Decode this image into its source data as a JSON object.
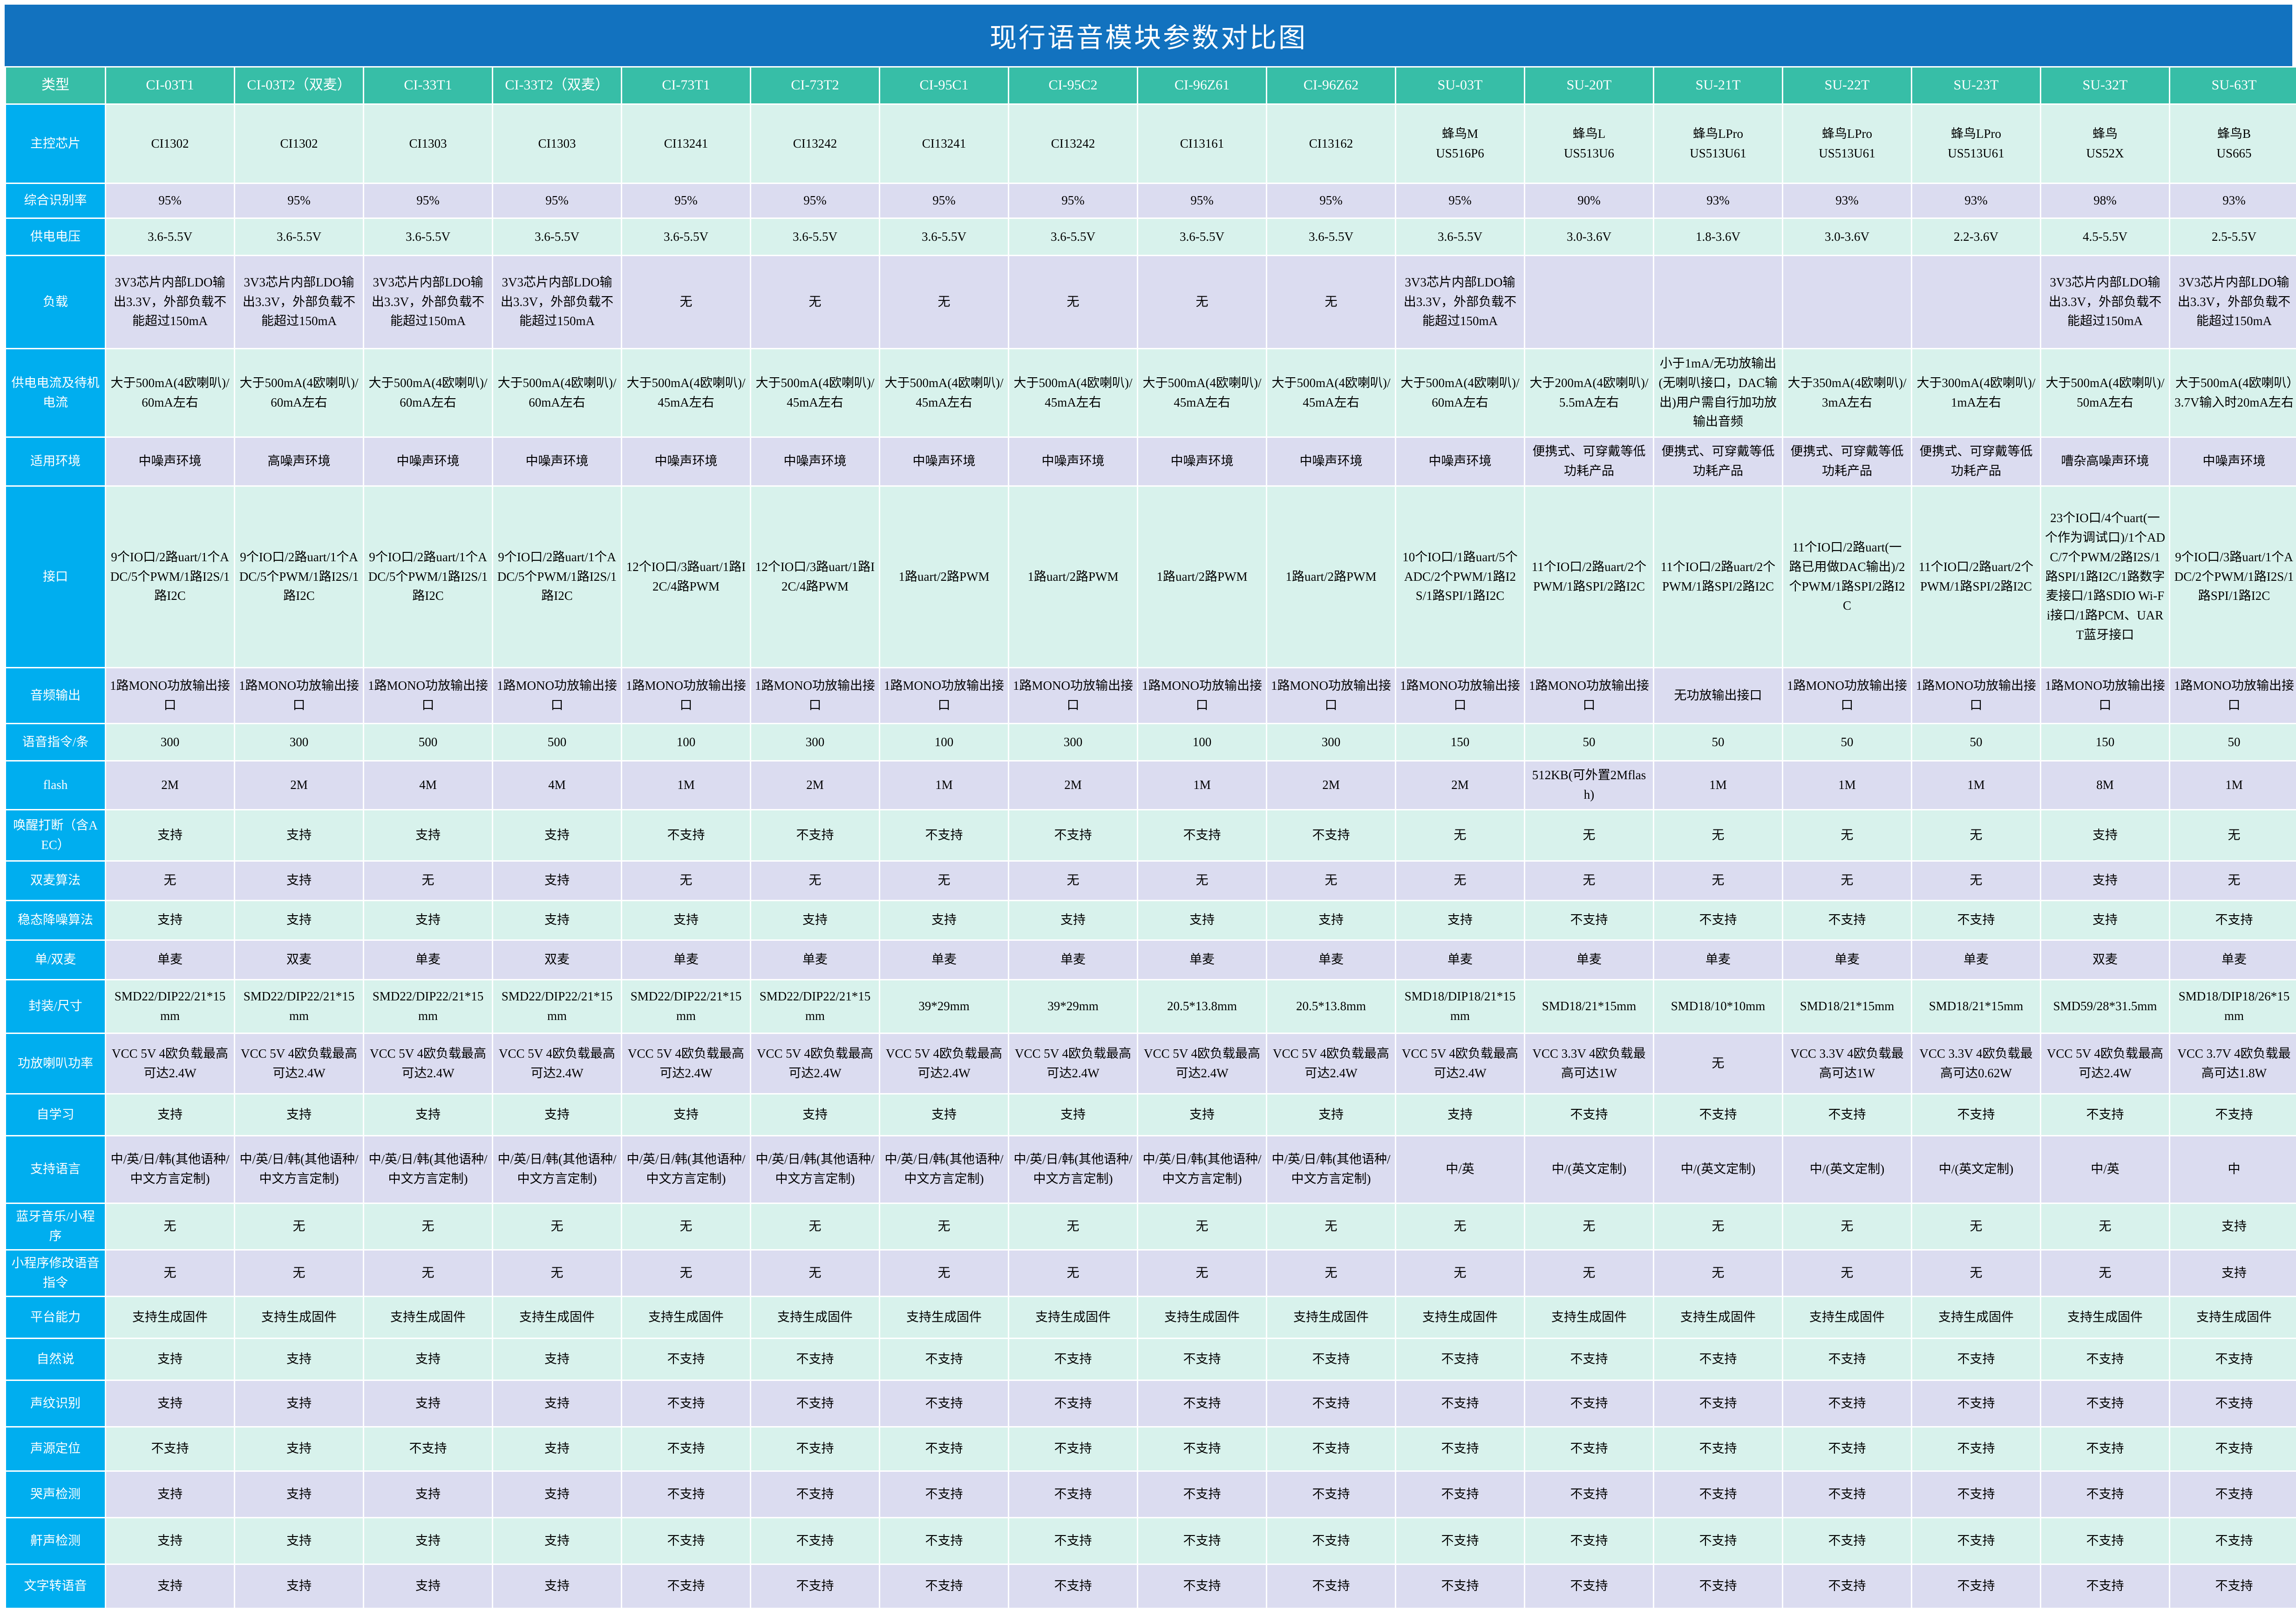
{
  "title": "现行语音模块参数对比图",
  "colors": {
    "title_bar": "#1272BF",
    "label_column": "#00AEEF",
    "header_row": "#37BEA7",
    "shade_mint": "#D8F2EC",
    "shade_lavender": "#DBDCF0",
    "grid": "#FFFFFF"
  },
  "table": {
    "corner_label": "类型",
    "columns": [
      "CI-03T1",
      "CI-03T2（双麦）",
      "CI-33T1",
      "CI-33T2（双麦）",
      "CI-73T1",
      "CI-73T2",
      "CI-95C1",
      "CI-95C2",
      "CI-96Z61",
      "CI-96Z62",
      "SU-03T",
      "SU-20T",
      "SU-21T",
      "SU-22T",
      "SU-23T",
      "SU-32T",
      "SU-63T"
    ],
    "rows": [
      {
        "label": "主控芯片",
        "values": [
          "CI1302",
          "CI1302",
          "CI1303",
          "CI1303",
          "CI13241",
          "CI13242",
          "CI13241",
          "CI13242",
          "CI13161",
          "CI13162",
          "蜂鸟M\nUS516P6",
          "蜂鸟L\nUS513U6",
          "蜂鸟LPro\nUS513U61",
          "蜂鸟LPro\nUS513U61",
          "蜂鸟LPro\nUS513U61",
          "蜂鸟\nUS52X",
          "蜂鸟B\nUS665"
        ]
      },
      {
        "label": "综合识别率",
        "values": [
          "95%",
          "95%",
          "95%",
          "95%",
          "95%",
          "95%",
          "95%",
          "95%",
          "95%",
          "95%",
          "95%",
          "90%",
          "93%",
          "93%",
          "93%",
          "98%",
          "93%"
        ]
      },
      {
        "label": "供电电压",
        "values": [
          "3.6-5.5V",
          "3.6-5.5V",
          "3.6-5.5V",
          "3.6-5.5V",
          "3.6-5.5V",
          "3.6-5.5V",
          "3.6-5.5V",
          "3.6-5.5V",
          "3.6-5.5V",
          "3.6-5.5V",
          "3.6-5.5V",
          "3.0-3.6V",
          "1.8-3.6V",
          "3.0-3.6V",
          "2.2-3.6V",
          "4.5-5.5V",
          "2.5-5.5V"
        ]
      },
      {
        "label": "负载",
        "values": [
          "3V3芯片内部LDO输出3.3V，外部负载不能超过150mA",
          "3V3芯片内部LDO输出3.3V，外部负载不能超过150mA",
          "3V3芯片内部LDO输出3.3V，外部负载不能超过150mA",
          "3V3芯片内部LDO输出3.3V，外部负载不能超过150mA",
          "无",
          "无",
          "无",
          "无",
          "无",
          "无",
          "3V3芯片内部LDO输出3.3V，外部负载不能超过150mA",
          "",
          "",
          "",
          "",
          "3V3芯片内部LDO输出3.3V，外部负载不能超过150mA",
          "3V3芯片内部LDO输出3.3V，外部负载不能超过150mA"
        ]
      },
      {
        "label": "供电电流及待机电流",
        "values": [
          "大于500mA(4欧喇叭)/60mA左右",
          "大于500mA(4欧喇叭)/60mA左右",
          "大于500mA(4欧喇叭)/60mA左右",
          "大于500mA(4欧喇叭)/60mA左右",
          "大于500mA(4欧喇叭)/45mA左右",
          "大于500mA(4欧喇叭)/45mA左右",
          "大于500mA(4欧喇叭)/45mA左右",
          "大于500mA(4欧喇叭)/45mA左右",
          "大于500mA(4欧喇叭)/45mA左右",
          "大于500mA(4欧喇叭)/45mA左右",
          "大于500mA(4欧喇叭)/60mA左右",
          "大于200mA(4欧喇叭)/5.5mA左右",
          "小于1mA/无功放输出(无喇叭接口，DAC输出)用户需自行加功放输出音频",
          "大于350mA(4欧喇叭)/3mA左右",
          "大于300mA(4欧喇叭)/1mA左右",
          "大于500mA(4欧喇叭)/50mA左右",
          "大于500mA(4欧喇叭）3.7V输入时20mA左右"
        ]
      },
      {
        "label": "适用环境",
        "values": [
          "中噪声环境",
          "高噪声环境",
          "中噪声环境",
          "中噪声环境",
          "中噪声环境",
          "中噪声环境",
          "中噪声环境",
          "中噪声环境",
          "中噪声环境",
          "中噪声环境",
          "中噪声环境",
          "便携式、可穿戴等低功耗产品",
          "便携式、可穿戴等低功耗产品",
          "便携式、可穿戴等低功耗产品",
          "便携式、可穿戴等低功耗产品",
          "嘈杂高噪声环境",
          "中噪声环境"
        ]
      },
      {
        "label": "接口",
        "values": [
          "9个IO口/2路uart/1个ADC/5个PWM/1路I2S/1路I2C",
          "9个IO口/2路uart/1个ADC/5个PWM/1路I2S/1路I2C",
          "9个IO口/2路uart/1个ADC/5个PWM/1路I2S/1路I2C",
          "9个IO口/2路uart/1个ADC/5个PWM/1路I2S/1路I2C",
          "12个IO口/3路uart/1路I2C/4路PWM",
          "12个IO口/3路uart/1路I2C/4路PWM",
          "1路uart/2路PWM",
          "1路uart/2路PWM",
          "1路uart/2路PWM",
          "1路uart/2路PWM",
          "10个IO口/1路uart/5个ADC/2个PWM/1路I2S/1路SPI/1路I2C",
          "11个IO口/2路uart/2个PWM/1路SPI/2路I2C",
          "11个IO口/2路uart/2个PWM/1路SPI/2路I2C",
          "11个IO口/2路uart(一路已用做DAC输出)/2个PWM/1路SPI/2路I2C",
          "11个IO口/2路uart/2个PWM/1路SPI/2路I2C",
          "23个IO口/4个uart(一个作为调试口)/1个ADC/7个PWM/2路I2S/1路SPI/1路I2C/1路数字麦接口/1路SDIO Wi-Fi接口/1路PCM、UART蓝牙接口",
          "9个IO口/3路uart/1个ADC/2个PWM/1路I2S/1路SPI/1路I2C"
        ]
      },
      {
        "label": "音频输出",
        "values": [
          "1路MONO功放输出接口",
          "1路MONO功放输出接口",
          "1路MONO功放输出接口",
          "1路MONO功放输出接口",
          "1路MONO功放输出接口",
          "1路MONO功放输出接口",
          "1路MONO功放输出接口",
          "1路MONO功放输出接口",
          "1路MONO功放输出接口",
          "1路MONO功放输出接口",
          "1路MONO功放输出接口",
          "1路MONO功放输出接口",
          "无功放输出接口",
          "1路MONO功放输出接口",
          "1路MONO功放输出接口",
          "1路MONO功放输出接口",
          "1路MONO功放输出接口"
        ]
      },
      {
        "label": "语音指令/条",
        "values": [
          "300",
          "300",
          "500",
          "500",
          "100",
          "300",
          "100",
          "300",
          "100",
          "300",
          "150",
          "50",
          "50",
          "50",
          "50",
          "150",
          "50"
        ]
      },
      {
        "label": "flash",
        "values": [
          "2M",
          "2M",
          "4M",
          "4M",
          "1M",
          "2M",
          "1M",
          "2M",
          "1M",
          "2M",
          "2M",
          "512KB(可外置2Mflash)",
          "1M",
          "1M",
          "1M",
          "8M",
          "1M"
        ]
      },
      {
        "label": "唤醒打断（含AEC）",
        "values": [
          "支持",
          "支持",
          "支持",
          "支持",
          "不支持",
          "不支持",
          "不支持",
          "不支持",
          "不支持",
          "不支持",
          "无",
          "无",
          "无",
          "无",
          "无",
          "支持",
          "无"
        ]
      },
      {
        "label": "双麦算法",
        "values": [
          "无",
          "支持",
          "无",
          "支持",
          "无",
          "无",
          "无",
          "无",
          "无",
          "无",
          "无",
          "无",
          "无",
          "无",
          "无",
          "支持",
          "无"
        ]
      },
      {
        "label": "稳态降噪算法",
        "values": [
          "支持",
          "支持",
          "支持",
          "支持",
          "支持",
          "支持",
          "支持",
          "支持",
          "支持",
          "支持",
          "支持",
          "不支持",
          "不支持",
          "不支持",
          "不支持",
          "支持",
          "不支持"
        ]
      },
      {
        "label": "单/双麦",
        "values": [
          "单麦",
          "双麦",
          "单麦",
          "双麦",
          "单麦",
          "单麦",
          "单麦",
          "单麦",
          "单麦",
          "单麦",
          "单麦",
          "单麦",
          "单麦",
          "单麦",
          "单麦",
          "双麦",
          "单麦"
        ]
      },
      {
        "label": "封装/尺寸",
        "values": [
          "SMD22/DIP22/21*15mm",
          "SMD22/DIP22/21*15mm",
          "SMD22/DIP22/21*15mm",
          "SMD22/DIP22/21*15mm",
          "SMD22/DIP22/21*15mm",
          "SMD22/DIP22/21*15mm",
          "39*29mm",
          "39*29mm",
          "20.5*13.8mm",
          "20.5*13.8mm",
          "SMD18/DIP18/21*15mm",
          "SMD18/21*15mm",
          "SMD18/10*10mm",
          "SMD18/21*15mm",
          "SMD18/21*15mm",
          "SMD59/28*31.5mm",
          "SMD18/DIP18/26*15mm"
        ]
      },
      {
        "label": "功放喇叭功率",
        "values": [
          "VCC 5V 4欧负载最高可达2.4W",
          "VCC 5V 4欧负载最高可达2.4W",
          "VCC 5V 4欧负载最高可达2.4W",
          "VCC 5V 4欧负载最高可达2.4W",
          "VCC 5V 4欧负载最高可达2.4W",
          "VCC 5V 4欧负载最高可达2.4W",
          "VCC 5V 4欧负载最高可达2.4W",
          "VCC 5V 4欧负载最高可达2.4W",
          "VCC 5V 4欧负载最高可达2.4W",
          "VCC 5V 4欧负载最高可达2.4W",
          "VCC 5V 4欧负载最高可达2.4W",
          "VCC 3.3V 4欧负载最高可达1W",
          "无",
          "VCC 3.3V 4欧负载最高可达1W",
          "VCC 3.3V 4欧负载最高可达0.62W",
          "VCC 5V 4欧负载最高可达2.4W",
          "VCC 3.7V 4欧负载最高可达1.8W"
        ]
      },
      {
        "label": "自学习",
        "values": [
          "支持",
          "支持",
          "支持",
          "支持",
          "支持",
          "支持",
          "支持",
          "支持",
          "支持",
          "支持",
          "支持",
          "不支持",
          "不支持",
          "不支持",
          "不支持",
          "不支持",
          "不支持"
        ]
      },
      {
        "label": "支持语言",
        "values": [
          "中/英/日/韩(其他语种/中文方言定制)",
          "中/英/日/韩(其他语种/中文方言定制)",
          "中/英/日/韩(其他语种/中文方言定制)",
          "中/英/日/韩(其他语种/中文方言定制)",
          "中/英/日/韩(其他语种/中文方言定制)",
          "中/英/日/韩(其他语种/中文方言定制)",
          "中/英/日/韩(其他语种/中文方言定制)",
          "中/英/日/韩(其他语种/中文方言定制)",
          "中/英/日/韩(其他语种/中文方言定制)",
          "中/英/日/韩(其他语种/中文方言定制)",
          "中/英",
          "中/(英文定制)",
          "中/(英文定制)",
          "中/(英文定制)",
          "中/(英文定制)",
          "中/英",
          "中"
        ]
      },
      {
        "label": "蓝牙音乐/小程序",
        "values": [
          "无",
          "无",
          "无",
          "无",
          "无",
          "无",
          "无",
          "无",
          "无",
          "无",
          "无",
          "无",
          "无",
          "无",
          "无",
          "无",
          "支持"
        ]
      },
      {
        "label": "小程序修改语音指令",
        "values": [
          "无",
          "无",
          "无",
          "无",
          "无",
          "无",
          "无",
          "无",
          "无",
          "无",
          "无",
          "无",
          "无",
          "无",
          "无",
          "无",
          "支持"
        ]
      },
      {
        "label": "平台能力",
        "values": [
          "支持生成固件",
          "支持生成固件",
          "支持生成固件",
          "支持生成固件",
          "支持生成固件",
          "支持生成固件",
          "支持生成固件",
          "支持生成固件",
          "支持生成固件",
          "支持生成固件",
          "支持生成固件",
          "支持生成固件",
          "支持生成固件",
          "支持生成固件",
          "支持生成固件",
          "支持生成固件",
          "支持生成固件"
        ]
      },
      {
        "label": "自然说",
        "values": [
          "支持",
          "支持",
          "支持",
          "支持",
          "不支持",
          "不支持",
          "不支持",
          "不支持",
          "不支持",
          "不支持",
          "不支持",
          "不支持",
          "不支持",
          "不支持",
          "不支持",
          "不支持",
          "不支持"
        ]
      },
      {
        "label": "声纹识别",
        "values": [
          "支持",
          "支持",
          "支持",
          "支持",
          "不支持",
          "不支持",
          "不支持",
          "不支持",
          "不支持",
          "不支持",
          "不支持",
          "不支持",
          "不支持",
          "不支持",
          "不支持",
          "不支持",
          "不支持"
        ]
      },
      {
        "label": "声源定位",
        "values": [
          "不支持",
          "支持",
          "不支持",
          "支持",
          "不支持",
          "不支持",
          "不支持",
          "不支持",
          "不支持",
          "不支持",
          "不支持",
          "不支持",
          "不支持",
          "不支持",
          "不支持",
          "不支持",
          "不支持"
        ]
      },
      {
        "label": "哭声检测",
        "values": [
          "支持",
          "支持",
          "支持",
          "支持",
          "不支持",
          "不支持",
          "不支持",
          "不支持",
          "不支持",
          "不支持",
          "不支持",
          "不支持",
          "不支持",
          "不支持",
          "不支持",
          "不支持",
          "不支持"
        ]
      },
      {
        "label": "鼾声检测",
        "values": [
          "支持",
          "支持",
          "支持",
          "支持",
          "不支持",
          "不支持",
          "不支持",
          "不支持",
          "不支持",
          "不支持",
          "不支持",
          "不支持",
          "不支持",
          "不支持",
          "不支持",
          "不支持",
          "不支持"
        ]
      },
      {
        "label": "文字转语音",
        "values": [
          "支持",
          "支持",
          "支持",
          "支持",
          "不支持",
          "不支持",
          "不支持",
          "不支持",
          "不支持",
          "不支持",
          "不支持",
          "不支持",
          "不支持",
          "不支持",
          "不支持",
          "不支持",
          "不支持"
        ]
      }
    ]
  }
}
